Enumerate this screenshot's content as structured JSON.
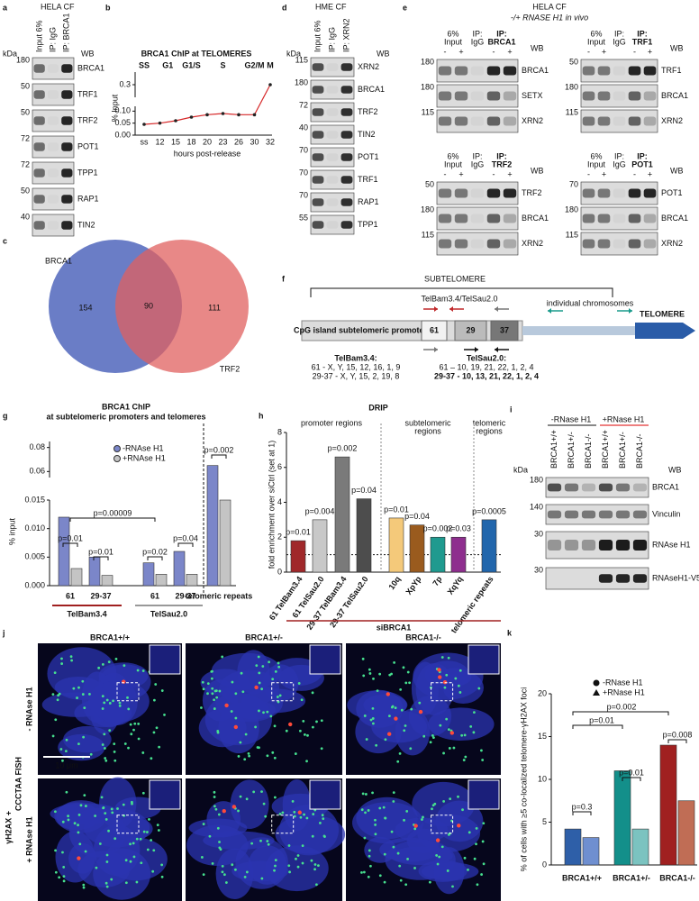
{
  "panels": {
    "a": {
      "letter": "a",
      "title": "HELA CF",
      "lanes": [
        "Input 6%",
        "IP: IgG",
        "IP: BRCA1"
      ],
      "kda": "kDa",
      "wb": "WB",
      "rows": [
        {
          "name": "BRCA1",
          "marker": 180
        },
        {
          "name": "TRF1",
          "marker": 50
        },
        {
          "name": "TRF2",
          "marker": 50
        },
        {
          "name": "POT1",
          "marker": 72
        },
        {
          "name": "TPP1",
          "marker": 72
        },
        {
          "name": "RAP1",
          "marker": 50
        },
        {
          "name": "TIN2",
          "marker": 40
        }
      ]
    },
    "c": {
      "letter": "c",
      "sets": [
        "BRCA1",
        "TRF2"
      ],
      "counts": [
        154,
        90,
        111
      ]
    },
    "d": {
      "letter": "d",
      "title": "HME CF",
      "lanes": [
        "Input 6%",
        "IP: IgG",
        "IP: XRN2"
      ],
      "kda": "kDa",
      "wb": "WB",
      "rows": [
        {
          "name": "XRN2",
          "marker": 115
        },
        {
          "name": "BRCA1",
          "marker": 180
        },
        {
          "name": "TRF2",
          "marker": 72
        },
        {
          "name": "TIN2",
          "marker": 40
        },
        {
          "name": "POT1",
          "marker": 70
        },
        {
          "name": "TRF1",
          "marker": 70
        },
        {
          "name": "RAP1",
          "marker": 70
        },
        {
          "name": "TPP1",
          "marker": 55
        }
      ]
    },
    "e": {
      "letter": "e",
      "title": "HELA CF",
      "subtitle": "-/+ RNASE H1 in vivo",
      "blots": [
        {
          "input": [
            "6%",
            "Input"
          ],
          "igg": [
            "IP:",
            "IgG"
          ],
          "ip": [
            "IP:",
            "BRCA1"
          ],
          "wb": "WB",
          "signs": [
            "-",
            "+",
            "-",
            "+"
          ],
          "rows": [
            {
              "name": "BRCA1",
              "marker": 180
            },
            {
              "name": "SETX",
              "marker": 180
            },
            {
              "name": "XRN2",
              "marker": 115
            }
          ]
        },
        {
          "input": [
            "6%",
            "Input"
          ],
          "igg": [
            "IP:",
            "IgG"
          ],
          "ip": [
            "IP:",
            "TRF1"
          ],
          "wb": "WB",
          "signs": [
            "-",
            "+",
            "-",
            "+"
          ],
          "rows": [
            {
              "name": "TRF1",
              "marker": 50
            },
            {
              "name": "BRCA1",
              "marker": 180
            },
            {
              "name": "XRN2",
              "marker": 115
            }
          ]
        },
        {
          "input": [
            "6%",
            "Input"
          ],
          "igg": [
            "IP:",
            "IgG"
          ],
          "ip": [
            "IP:",
            "TRF2"
          ],
          "wb": "WB",
          "signs": [
            "-",
            "+",
            "-",
            "+"
          ],
          "rows": [
            {
              "name": "TRF2",
              "marker": 50
            },
            {
              "name": "BRCA1",
              "marker": 180
            },
            {
              "name": "XRN2",
              "marker": 115
            }
          ]
        },
        {
          "input": [
            "6%",
            "Input"
          ],
          "igg": [
            "IP:",
            "IgG"
          ],
          "ip": [
            "IP:",
            "POT1"
          ],
          "wb": "WB",
          "signs": [
            "-",
            "+",
            "-",
            "+"
          ],
          "rows": [
            {
              "name": "POT1",
              "marker": 70
            },
            {
              "name": "BRCA1",
              "marker": 180
            },
            {
              "name": "XRN2",
              "marker": 115
            }
          ]
        }
      ]
    },
    "f": {
      "letter": "f",
      "region": "SUBTELOMERE",
      "probes": "TelBam3.4/TelSau2.0",
      "chromosomes": "individual chromosomes",
      "telomere": "TELOMERE",
      "promoter": "CpG island subtelomeric promoter",
      "amplicons": [
        "61",
        "29",
        "37"
      ],
      "telbam": {
        "name": "TelBam3.4:",
        "lines": [
          "61 - X, Y, 15, 12, 16, 1, 9",
          "29-37 - X, Y, 15, 2, 19, 8"
        ]
      },
      "telsau": {
        "name": "TelSau2.0:",
        "lines": [
          "61 – 10, 19, 21, 22, 1, 2, 4",
          "29-37 - 10, 13, 21, 22, 1, 2, 4"
        ]
      }
    },
    "i": {
      "letter": "i",
      "conditions": [
        "-RNase H1",
        "+RNase H1"
      ],
      "lanes": [
        "BRCA1+/+",
        "BRCA1+/-",
        "BRCA1-/-",
        "BRCA1+/+",
        "BRCA1+/-",
        "BRCA1-/-"
      ],
      "kda": "kDa",
      "wb": "WB",
      "rows": [
        {
          "name": "BRCA1",
          "marker": 180
        },
        {
          "name": "Vinculin",
          "marker": 140
        },
        {
          "name": "RNAse H1",
          "marker": 30
        },
        {
          "name": "RNAseH1-V5",
          "marker": 30
        }
      ]
    },
    "j": {
      "letter": "j",
      "columns": [
        "BRCA1+/+",
        "BRCA1+/-",
        "BRCA1-/-"
      ],
      "rows": [
        "- RNAse H1",
        "+ RNAse H1"
      ],
      "stain": [
        "γH2AX +",
        "CCCTAA FISH"
      ],
      "scale_bar": "10 μm"
    }
  },
  "chart_data": [
    {
      "letter": "b",
      "type": "line",
      "title": "BRCA1 ChIP at TELOMERES",
      "x_label": "hours post-release",
      "y_label": "% Input",
      "phases": [
        "SS",
        "G1",
        "G1/S",
        "S",
        "G2/M",
        "M"
      ],
      "categories": [
        "ss",
        "12",
        "15",
        "18",
        "20",
        "23",
        "26",
        "30",
        "32"
      ],
      "values": [
        0.045,
        0.05,
        0.06,
        0.075,
        0.085,
        0.09,
        0.085,
        0.085,
        0.3
      ],
      "color": "#d62728",
      "ylim": [
        0,
        0.35
      ],
      "ybreak": [
        0.12,
        0.25
      ],
      "yticks": [
        {
          "value": 0,
          "label": "0.00"
        },
        0.05,
        {
          "value": 0.1,
          "label": "0.10"
        },
        0.3
      ]
    },
    {
      "letter": "g",
      "type": "bar",
      "title": [
        "BRCA1 ChIP",
        "at subtelomeric promoters and telomeres"
      ],
      "y_label": "% input",
      "categories": [
        "61",
        "29-37",
        "61",
        "29-37",
        "telomeric repeats"
      ],
      "groups": [
        {
          "label": "TelBam3.4",
          "color": "#a02020"
        },
        {
          "label": "TelSau2.0",
          "color": "#999999"
        }
      ],
      "series": [
        {
          "name": "-RNAse H1",
          "color": "#7b86c9",
          "values": [
            0.012,
            0.005,
            0.004,
            0.006,
            0.065
          ]
        },
        {
          "name": "+RNAse H1",
          "color": "#c4c4c4",
          "values": [
            0.003,
            0.0018,
            0.002,
            0.002,
            0.015
          ]
        }
      ],
      "ylim": [
        0,
        0.085
      ],
      "ybreak": [
        0.015,
        0.055
      ],
      "yticks": [
        {
          "value": 0,
          "label": "0.000"
        },
        0.005,
        {
          "value": 0.01,
          "label": "0.010"
        },
        0.015,
        0.06,
        0.08
      ],
      "annotations": [
        "p=0.01",
        "p=0.01",
        "p=0.00009",
        "p=0.02",
        "p=0.04",
        "p=0.002"
      ]
    },
    {
      "letter": "h",
      "type": "bar",
      "title": "DRIP",
      "y_label": "fold enrichment over siCtrl (set at 1)",
      "x_label": "siBRCA1",
      "sections": [
        [
          "promoter regions"
        ],
        [
          "subtelomeric",
          "regions"
        ],
        [
          "telomeric",
          "regions"
        ]
      ],
      "categories": [
        "61 TelBam3.4",
        "61 TelSau2.0",
        "29-37 TelBam3.4",
        "29-37 TelSau2.0",
        "10q",
        "XpYp",
        "7p",
        "XqYq",
        "telomeric repeats"
      ],
      "values": [
        1.8,
        3.0,
        6.6,
        4.2,
        3.1,
        2.7,
        2.0,
        2.0,
        3.0
      ],
      "colors": [
        "#a0282a",
        "#c8c8c8",
        "#7a7a7a",
        "#4d4d4d",
        "#f4c97a",
        "#9a5b1e",
        "#1f9a8f",
        "#8e2e8e",
        "#2166ac"
      ],
      "p_values": [
        "p=0.01",
        "p=0.004",
        "p=0.002",
        "p=0.04",
        "p=0.01",
        "p=0.04",
        "p=0.002",
        "p=0.03",
        "p=0.0005"
      ],
      "reference": 1,
      "ylim": [
        0,
        8
      ],
      "yticks": [
        0,
        2,
        4,
        6,
        8
      ]
    },
    {
      "letter": "k",
      "type": "bar",
      "y_label": "% of cells with ≥5 co-localized telomere-γH2AX foci",
      "categories": [
        "BRCA1+/+",
        "BRCA1+/-",
        "BRCA1-/-"
      ],
      "series": [
        {
          "name": "-RNase H1",
          "marker": "circle",
          "colors": [
            "#2e5fa8",
            "#138f8a",
            "#a02020"
          ],
          "values": [
            4.2,
            11,
            14
          ]
        },
        {
          "name": "+RNase H1",
          "marker": "triangle",
          "colors": [
            "#6f8fd0",
            "#7bc3c0",
            "#c06d55"
          ],
          "values": [
            3.2,
            4.2,
            7.5
          ]
        }
      ],
      "ylim": [
        0,
        20
      ],
      "yticks": [
        0,
        5,
        10,
        15,
        20
      ],
      "annotations": [
        "p=0.3",
        "p=0.01",
        "p=0.008",
        "p=0.01",
        "p=0.002"
      ]
    }
  ]
}
